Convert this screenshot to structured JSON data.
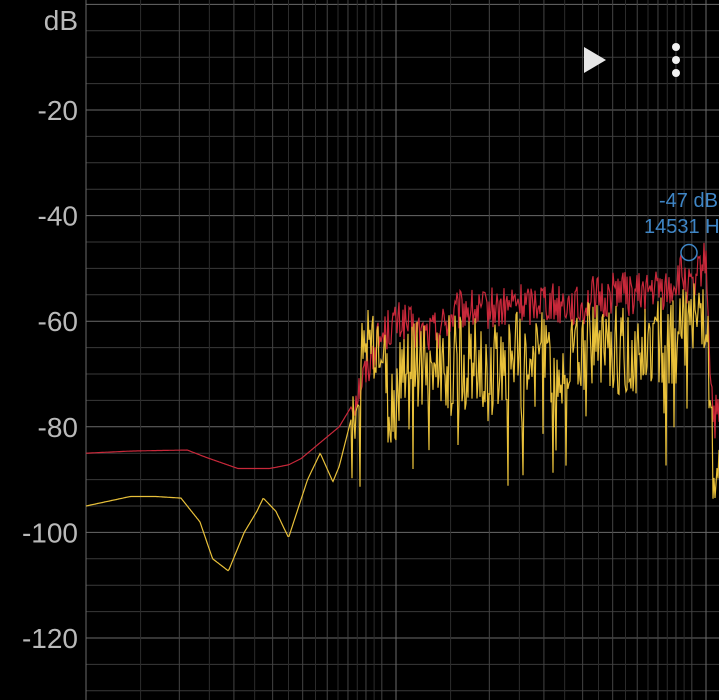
{
  "chart_data": {
    "type": "line",
    "ylabel": "dB",
    "yticks": [
      -20,
      -40,
      -60,
      -80,
      -100,
      -120
    ],
    "ylim": [
      -128,
      0
    ],
    "x_scale": "log",
    "grid": true,
    "series": [
      {
        "color": "#c8283a",
        "points": [
          [
            0,
            -85
          ],
          [
            0.07,
            -84.6
          ],
          [
            0.11,
            -84.5
          ],
          [
            0.16,
            -84.4
          ],
          [
            0.19,
            -85.8
          ],
          [
            0.24,
            -87.9
          ],
          [
            0.29,
            -87.9
          ],
          [
            0.32,
            -87.2
          ],
          [
            0.34,
            -86
          ],
          [
            0.36,
            -84
          ],
          [
            0.38,
            -82
          ],
          [
            0.4,
            -80
          ],
          [
            0.42,
            -76
          ],
          [
            0.44,
            -70
          ],
          [
            0.46,
            -64
          ],
          [
            0.48,
            -61
          ],
          [
            0.5,
            -60
          ],
          [
            0.52,
            -62
          ],
          [
            0.54,
            -62.5
          ],
          [
            0.56,
            -61
          ],
          [
            0.58,
            -59
          ],
          [
            0.6,
            -57.5
          ],
          [
            0.62,
            -58.5
          ],
          [
            0.64,
            -57.5
          ],
          [
            0.66,
            -57.7
          ],
          [
            0.68,
            -56.3
          ],
          [
            0.7,
            -57
          ],
          [
            0.72,
            -55.3
          ],
          [
            0.74,
            -56.7
          ],
          [
            0.76,
            -56.3
          ],
          [
            0.78,
            -57.8
          ],
          [
            0.8,
            -55.3
          ],
          [
            0.82,
            -56.2
          ],
          [
            0.84,
            -53.3
          ],
          [
            0.86,
            -55.2
          ],
          [
            0.88,
            -54.5
          ],
          [
            0.9,
            -54
          ],
          [
            0.92,
            -54.3
          ],
          [
            0.94,
            -51.3
          ],
          [
            0.96,
            -55.2
          ],
          [
            0.97,
            -50
          ],
          [
            0.98,
            -48.5
          ],
          [
            0.985,
            -65
          ],
          [
            0.99,
            -77
          ],
          [
            1,
            -80
          ]
        ]
      },
      {
        "color": "#e8c03a",
        "points": [
          [
            0,
            -95
          ],
          [
            0.07,
            -93.2
          ],
          [
            0.11,
            -93.2
          ],
          [
            0.15,
            -93.5
          ],
          [
            0.18,
            -98
          ],
          [
            0.2,
            -105
          ],
          [
            0.225,
            -107.3
          ],
          [
            0.25,
            -100
          ],
          [
            0.27,
            -96
          ],
          [
            0.28,
            -93.5
          ],
          [
            0.3,
            -96
          ],
          [
            0.32,
            -101
          ],
          [
            0.35,
            -90
          ],
          [
            0.37,
            -85
          ],
          [
            0.39,
            -90.4
          ],
          [
            0.4,
            -87.5
          ],
          [
            0.42,
            -78
          ],
          [
            0.44,
            -66
          ],
          [
            0.45,
            -60.5
          ],
          [
            0.47,
            -68
          ],
          [
            0.48,
            -78
          ],
          [
            0.49,
            -74
          ],
          [
            0.5,
            -67
          ],
          [
            0.52,
            -66
          ],
          [
            0.54,
            -69
          ],
          [
            0.56,
            -68.3
          ],
          [
            0.58,
            -67.2
          ],
          [
            0.6,
            -67.8
          ],
          [
            0.62,
            -68.3
          ],
          [
            0.64,
            -69.5
          ],
          [
            0.66,
            -66.1
          ],
          [
            0.68,
            -66.7
          ],
          [
            0.7,
            -69.5
          ],
          [
            0.72,
            -67.3
          ],
          [
            0.74,
            -66.6
          ],
          [
            0.76,
            -67.3
          ],
          [
            0.78,
            -66.1
          ],
          [
            0.8,
            -64.9
          ],
          [
            0.82,
            -66.1
          ],
          [
            0.84,
            -65.3
          ],
          [
            0.86,
            -65.1
          ],
          [
            0.88,
            -64.8
          ],
          [
            0.9,
            -63.2
          ],
          [
            0.92,
            -63.8
          ],
          [
            0.94,
            -62.5
          ],
          [
            0.96,
            -61.6
          ],
          [
            0.97,
            -59
          ],
          [
            0.98,
            -56
          ],
          [
            0.985,
            -75
          ],
          [
            0.99,
            -86
          ],
          [
            1,
            -90
          ]
        ]
      }
    ],
    "annotations": [
      {
        "text_db": "-47 dB",
        "text_hz": "14531 H",
        "y": -47
      }
    ]
  },
  "controls": {
    "play_icon": "play-icon",
    "menu_icon": "more-vertical-icon"
  }
}
